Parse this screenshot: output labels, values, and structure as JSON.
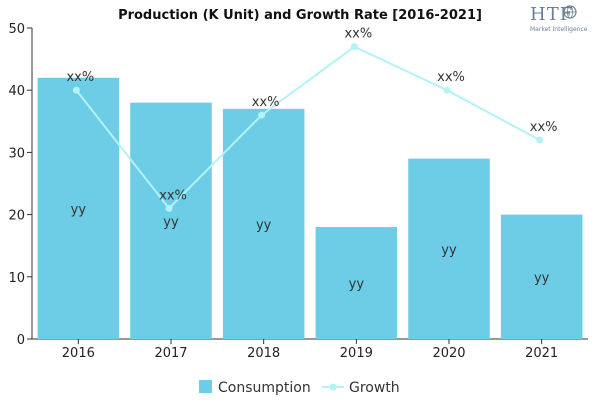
{
  "logo": {
    "main": "HTF",
    "sub": "Market Intelligence"
  },
  "chart_data": {
    "type": "bar",
    "title": "Production (K Unit) and Growth Rate [2016-2021]",
    "categories": [
      "2016",
      "2017",
      "2018",
      "2019",
      "2020",
      "2021"
    ],
    "ylim": [
      0,
      50
    ],
    "yticks": [
      0,
      10,
      20,
      30,
      40,
      50
    ],
    "grid": false,
    "legend_position": "bottom-center",
    "series": [
      {
        "name": "Consumption",
        "type": "bar",
        "color": "#6ecde6",
        "values": [
          42,
          38,
          37,
          18,
          29,
          20
        ],
        "labels": [
          "yy",
          "yy",
          "yy",
          "yy",
          "yy",
          "yy"
        ]
      },
      {
        "name": "Growth",
        "type": "line",
        "color": "#b3f2f5",
        "values": [
          40,
          21,
          36,
          47,
          40,
          32
        ],
        "labels": [
          "xx%",
          "xx%",
          "xx%",
          "xx%",
          "xx%",
          "xx%"
        ]
      }
    ]
  }
}
